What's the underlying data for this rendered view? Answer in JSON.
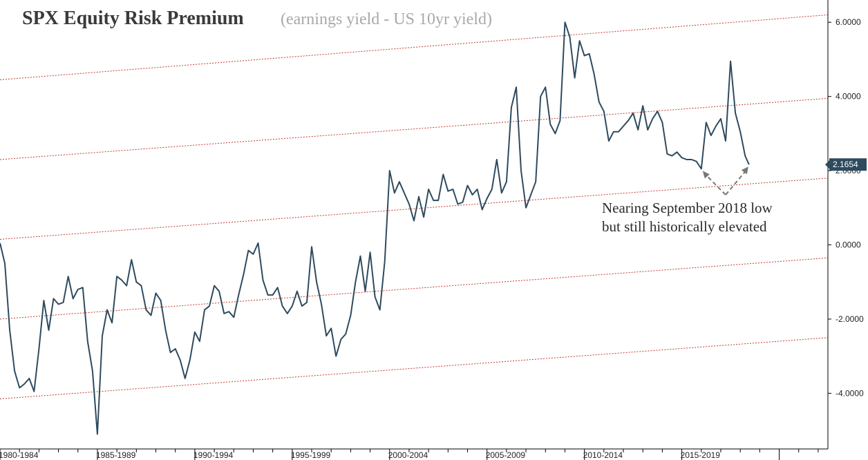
{
  "chart_data": {
    "type": "line",
    "title": "SPX Equity Risk Premium",
    "subtitle": "(earnings yield - US 10yr yield)",
    "xlabel": "",
    "ylabel": "",
    "x_range": [
      1980.0,
      2022.5
    ],
    "ylim": [
      -5.5,
      6.6
    ],
    "y_ticks": [
      6,
      4,
      2,
      0,
      -2,
      -4
    ],
    "y_tick_labels": [
      "6.0000",
      "4.0000",
      "2.0000",
      "0.0000",
      "-2.0000",
      "-4.0000"
    ],
    "x_ticks": [
      {
        "x": 1980,
        "label": "1980-1984"
      },
      {
        "x": 1985,
        "label": "1985-1989"
      },
      {
        "x": 1990,
        "label": "1990-1994"
      },
      {
        "x": 1995,
        "label": "1995-1999"
      },
      {
        "x": 2000,
        "label": "2000-2004"
      },
      {
        "x": 2005,
        "label": "2005-2009"
      },
      {
        "x": 2010,
        "label": "2010-2014"
      },
      {
        "x": 2015,
        "label": "2015-2019"
      }
    ],
    "last_value_label": "2.1654",
    "annotation": [
      "Nearing September 2018 low",
      "but still historically elevated"
    ],
    "grid": false,
    "series": [
      {
        "color": "#2e4a5e",
        "points": [
          [
            1980.0,
            0.05
          ],
          [
            1980.25,
            -0.5
          ],
          [
            1980.5,
            -2.3
          ],
          [
            1980.75,
            -3.4
          ],
          [
            1981.0,
            -3.85
          ],
          [
            1981.25,
            -3.75
          ],
          [
            1981.5,
            -3.6
          ],
          [
            1981.75,
            -3.95
          ],
          [
            1982.0,
            -2.8
          ],
          [
            1982.25,
            -1.5
          ],
          [
            1982.5,
            -2.3
          ],
          [
            1982.75,
            -1.45
          ],
          [
            1983.0,
            -1.6
          ],
          [
            1983.25,
            -1.55
          ],
          [
            1983.5,
            -0.85
          ],
          [
            1983.75,
            -1.45
          ],
          [
            1984.0,
            -1.2
          ],
          [
            1984.25,
            -1.15
          ],
          [
            1984.5,
            -2.6
          ],
          [
            1984.75,
            -3.4
          ],
          [
            1985.0,
            -5.1
          ],
          [
            1985.25,
            -2.45
          ],
          [
            1985.5,
            -1.75
          ],
          [
            1985.75,
            -2.1
          ],
          [
            1986.0,
            -0.85
          ],
          [
            1986.25,
            -0.95
          ],
          [
            1986.5,
            -1.1
          ],
          [
            1986.75,
            -0.4
          ],
          [
            1987.0,
            -1.0
          ],
          [
            1987.25,
            -1.1
          ],
          [
            1987.5,
            -1.75
          ],
          [
            1987.75,
            -1.9
          ],
          [
            1988.0,
            -1.3
          ],
          [
            1988.25,
            -1.5
          ],
          [
            1988.5,
            -2.3
          ],
          [
            1988.75,
            -2.9
          ],
          [
            1989.0,
            -2.8
          ],
          [
            1989.25,
            -3.1
          ],
          [
            1989.5,
            -3.6
          ],
          [
            1989.75,
            -3.1
          ],
          [
            1990.0,
            -2.35
          ],
          [
            1990.25,
            -2.6
          ],
          [
            1990.5,
            -1.75
          ],
          [
            1990.75,
            -1.65
          ],
          [
            1991.0,
            -1.1
          ],
          [
            1991.25,
            -1.25
          ],
          [
            1991.5,
            -1.85
          ],
          [
            1991.75,
            -1.8
          ],
          [
            1992.0,
            -1.95
          ],
          [
            1992.25,
            -1.35
          ],
          [
            1992.5,
            -0.8
          ],
          [
            1992.75,
            -0.15
          ],
          [
            1993.0,
            -0.25
          ],
          [
            1993.25,
            0.05
          ],
          [
            1993.5,
            -0.95
          ],
          [
            1993.75,
            -1.35
          ],
          [
            1994.0,
            -1.35
          ],
          [
            1994.25,
            -1.15
          ],
          [
            1994.5,
            -1.65
          ],
          [
            1994.75,
            -1.85
          ],
          [
            1995.0,
            -1.65
          ],
          [
            1995.25,
            -1.25
          ],
          [
            1995.5,
            -1.65
          ],
          [
            1995.75,
            -1.55
          ],
          [
            1996.0,
            -0.05
          ],
          [
            1996.25,
            -1.0
          ],
          [
            1996.5,
            -1.6
          ],
          [
            1996.75,
            -2.45
          ],
          [
            1997.0,
            -2.25
          ],
          [
            1997.25,
            -3.0
          ],
          [
            1997.5,
            -2.55
          ],
          [
            1997.75,
            -2.4
          ],
          [
            1998.0,
            -1.9
          ],
          [
            1998.25,
            -1.0
          ],
          [
            1998.5,
            -0.3
          ],
          [
            1998.75,
            -1.25
          ],
          [
            1999.0,
            -0.2
          ],
          [
            1999.25,
            -1.4
          ],
          [
            1999.5,
            -1.75
          ],
          [
            1999.75,
            -0.45
          ],
          [
            2000.0,
            2.0
          ],
          [
            2000.25,
            1.4
          ],
          [
            2000.5,
            1.7
          ],
          [
            2000.75,
            1.4
          ],
          [
            2001.0,
            1.1
          ],
          [
            2001.25,
            0.65
          ],
          [
            2001.5,
            1.3
          ],
          [
            2001.75,
            0.75
          ],
          [
            2002.0,
            1.5
          ],
          [
            2002.25,
            1.2
          ],
          [
            2002.5,
            1.2
          ],
          [
            2002.75,
            1.9
          ],
          [
            2003.0,
            1.45
          ],
          [
            2003.25,
            1.5
          ],
          [
            2003.5,
            1.1
          ],
          [
            2003.75,
            1.15
          ],
          [
            2004.0,
            1.6
          ],
          [
            2004.25,
            1.35
          ],
          [
            2004.5,
            1.5
          ],
          [
            2004.75,
            0.95
          ],
          [
            2005.0,
            1.25
          ],
          [
            2005.25,
            1.5
          ],
          [
            2005.5,
            2.3
          ],
          [
            2005.75,
            1.4
          ],
          [
            2006.0,
            1.7
          ],
          [
            2006.25,
            3.7
          ],
          [
            2006.5,
            4.25
          ],
          [
            2006.75,
            2.0
          ],
          [
            2007.0,
            1.0
          ],
          [
            2007.25,
            1.35
          ],
          [
            2007.5,
            1.7
          ],
          [
            2007.75,
            4.0
          ],
          [
            2008.0,
            4.25
          ],
          [
            2008.25,
            3.25
          ],
          [
            2008.5,
            3.0
          ],
          [
            2008.75,
            3.35
          ],
          [
            2009.0,
            6.0
          ],
          [
            2009.25,
            5.6
          ],
          [
            2009.5,
            4.5
          ],
          [
            2009.75,
            5.5
          ],
          [
            2010.0,
            5.1
          ],
          [
            2010.25,
            5.15
          ],
          [
            2010.5,
            4.6
          ],
          [
            2010.75,
            3.85
          ],
          [
            2011.0,
            3.6
          ],
          [
            2011.25,
            2.8
          ],
          [
            2011.5,
            3.05
          ],
          [
            2011.75,
            3.05
          ],
          [
            2012.0,
            3.2
          ],
          [
            2012.25,
            3.35
          ],
          [
            2012.5,
            3.55
          ],
          [
            2012.75,
            3.1
          ],
          [
            2013.0,
            3.75
          ],
          [
            2013.25,
            3.1
          ],
          [
            2013.5,
            3.4
          ],
          [
            2013.75,
            3.6
          ],
          [
            2014.0,
            3.3
          ],
          [
            2014.25,
            2.45
          ],
          [
            2014.5,
            2.4
          ],
          [
            2014.75,
            2.5
          ],
          [
            2015.0,
            2.35
          ],
          [
            2015.25,
            2.3
          ],
          [
            2015.5,
            2.3
          ],
          [
            2015.75,
            2.25
          ],
          [
            2016.0,
            2.05
          ],
          [
            2016.25,
            3.3
          ],
          [
            2016.5,
            2.95
          ],
          [
            2016.75,
            3.2
          ],
          [
            2017.0,
            3.4
          ],
          [
            2017.25,
            2.8
          ],
          [
            2017.5,
            4.95
          ],
          [
            2017.75,
            3.55
          ],
          [
            2018.0,
            3.05
          ],
          [
            2018.25,
            2.4
          ],
          [
            2018.45,
            2.1654
          ]
        ]
      }
    ],
    "channel_lines": [
      {
        "y_start": 4.45,
        "y_end": 6.2
      },
      {
        "y_start": 2.3,
        "y_end": 3.95
      },
      {
        "y_start": 0.15,
        "y_end": 1.8
      },
      {
        "y_start": -2.0,
        "y_end": -0.35
      },
      {
        "y_start": -4.15,
        "y_end": -2.5
      }
    ],
    "channel_color": "#c0392b",
    "axis_color": "#000000",
    "last_label_bg": "#2e4a5e"
  }
}
